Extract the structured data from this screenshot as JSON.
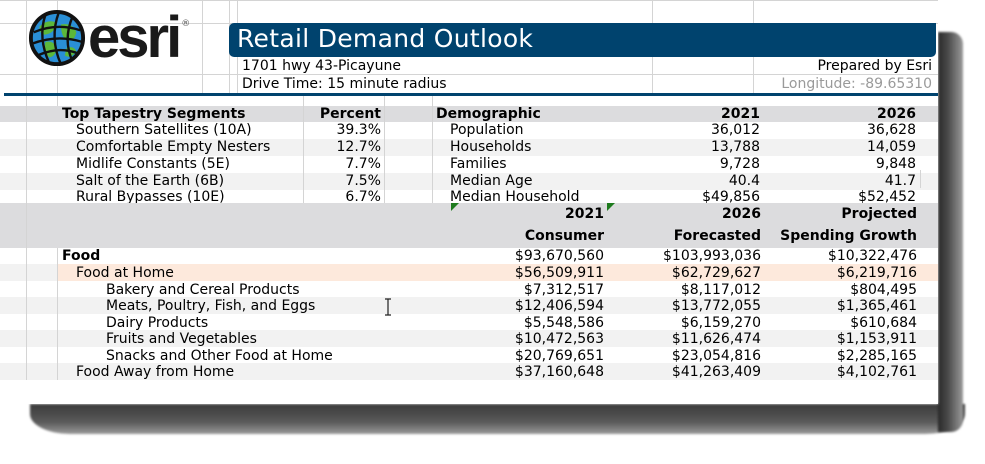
{
  "header": {
    "logo_text": "esri",
    "logo_reg": "®",
    "title": "Retail Demand Outlook",
    "address": "1701 hwy 43-Picayune",
    "drive_time": "Drive Time: 15 minute radius",
    "prepared_by": "Prepared by Esri",
    "longitude": "Longitude: -89.65310"
  },
  "colors": {
    "brand_blue": "#00436e",
    "header_grey": "#dcdcde",
    "highlight_peach": "#fde9dc",
    "alt_row": "#f2f2f2",
    "comment_marker": "#1e7b1e"
  },
  "tapestry": {
    "header_label": "Top Tapestry Segments",
    "header_percent": "Percent",
    "rows": [
      {
        "name": "Southern Satellites (10A)",
        "percent": "39.3%"
      },
      {
        "name": "Comfortable Empty Nesters",
        "percent": "12.7%"
      },
      {
        "name": "Midlife Constants (5E)",
        "percent": "7.7%"
      },
      {
        "name": "Salt of the Earth (6B)",
        "percent": "7.5%"
      },
      {
        "name": "Rural Bypasses (10E)",
        "percent": "6.7%"
      }
    ]
  },
  "demographic": {
    "header_label": "Demographic",
    "header_2021": "2021",
    "header_2026": "2026",
    "rows": [
      {
        "name": "Population",
        "v2021": "36,012",
        "v2026": "36,628"
      },
      {
        "name": "Households",
        "v2021": "13,788",
        "v2026": "14,059"
      },
      {
        "name": "Families",
        "v2021": "9,728",
        "v2026": "9,848"
      },
      {
        "name": "Median Age",
        "v2021": "40.4",
        "v2026": "41.7"
      },
      {
        "name": "Median Household",
        "v2021": "$49,856",
        "v2026": "$52,452"
      }
    ]
  },
  "spending": {
    "col1_line1": "2021",
    "col1_line2": "Consumer",
    "col2_line1": "2026",
    "col2_line2": "Forecasted",
    "col3_line1": "Projected",
    "col3_line2": "Spending Growth",
    "rows": [
      {
        "name": "Food",
        "c2021": "$93,670,560",
        "c2026": "$103,993,036",
        "growth": "$10,322,476"
      },
      {
        "name": "Food at Home",
        "c2021": "$56,509,911",
        "c2026": "$62,729,627",
        "growth": "$6,219,716"
      },
      {
        "name": "Bakery and Cereal Products",
        "c2021": "$7,312,517",
        "c2026": "$8,117,012",
        "growth": "$804,495"
      },
      {
        "name": "Meats, Poultry, Fish, and Eggs",
        "c2021": "$12,406,594",
        "c2026": "$13,772,055",
        "growth": "$1,365,461"
      },
      {
        "name": "Dairy Products",
        "c2021": "$5,548,586",
        "c2026": "$6,159,270",
        "growth": "$610,684"
      },
      {
        "name": "Fruits and Vegetables",
        "c2021": "$10,472,563",
        "c2026": "$11,626,474",
        "growth": "$1,153,911"
      },
      {
        "name": "Snacks and Other Food at Home",
        "c2021": "$20,769,651",
        "c2026": "$23,054,816",
        "growth": "$2,285,165"
      },
      {
        "name": "Food Away from Home",
        "c2021": "$37,160,648",
        "c2026": "$41,263,409",
        "growth": "$4,102,761"
      }
    ]
  }
}
